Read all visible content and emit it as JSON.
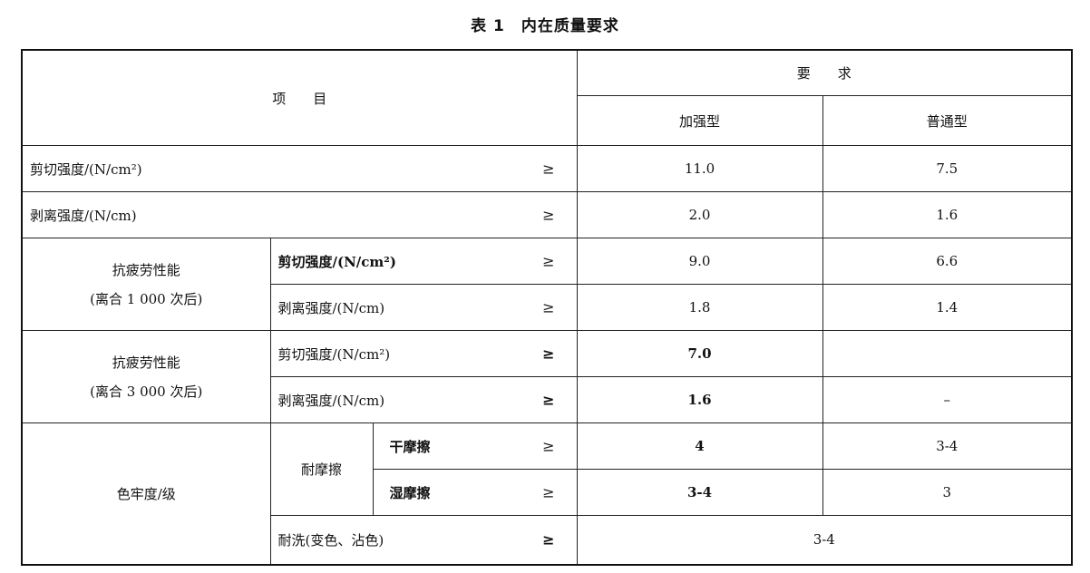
{
  "title": "表 1　内在质量要求",
  "header": {
    "item": "项　　目",
    "requirement": "要　　求",
    "reinforced": "加强型",
    "ordinary": "普通型"
  },
  "ge": "≥",
  "rows": {
    "shear": {
      "label": "剪切强度/(N/cm²)",
      "reinforced": "11.0",
      "ordinary": "7.5"
    },
    "peel": {
      "label": "剥离强度/(N/cm)",
      "reinforced": "2.0",
      "ordinary": "1.6"
    },
    "fatigue1000": {
      "group_line1": "抗疲劳性能",
      "group_line2": "(离合 1 000 次后)",
      "shear": {
        "label": "剪切强度/(N/cm²)",
        "reinforced": "9.0",
        "ordinary": "6.6"
      },
      "peel": {
        "label": "剥离强度/(N/cm)",
        "reinforced": "1.8",
        "ordinary": "1.4"
      }
    },
    "fatigue3000": {
      "group_line1": "抗疲劳性能",
      "group_line2": "(离合 3 000 次后)",
      "shear": {
        "label": "剪切强度/(N/cm²)",
        "reinforced": "7.0",
        "ordinary": ""
      },
      "peel": {
        "label": "剥离强度/(N/cm)",
        "reinforced": "1.6",
        "ordinary": "–"
      }
    },
    "colorfast": {
      "group": "色牢度/级",
      "rub": "耐摩擦",
      "dry": {
        "label": "干摩擦",
        "reinforced": "4",
        "ordinary": "3-4"
      },
      "wet": {
        "label": "湿摩擦",
        "reinforced": "3-4",
        "ordinary": "3"
      },
      "wash": {
        "label": "耐洗(变色、沾色)",
        "value": "3-4"
      }
    }
  }
}
